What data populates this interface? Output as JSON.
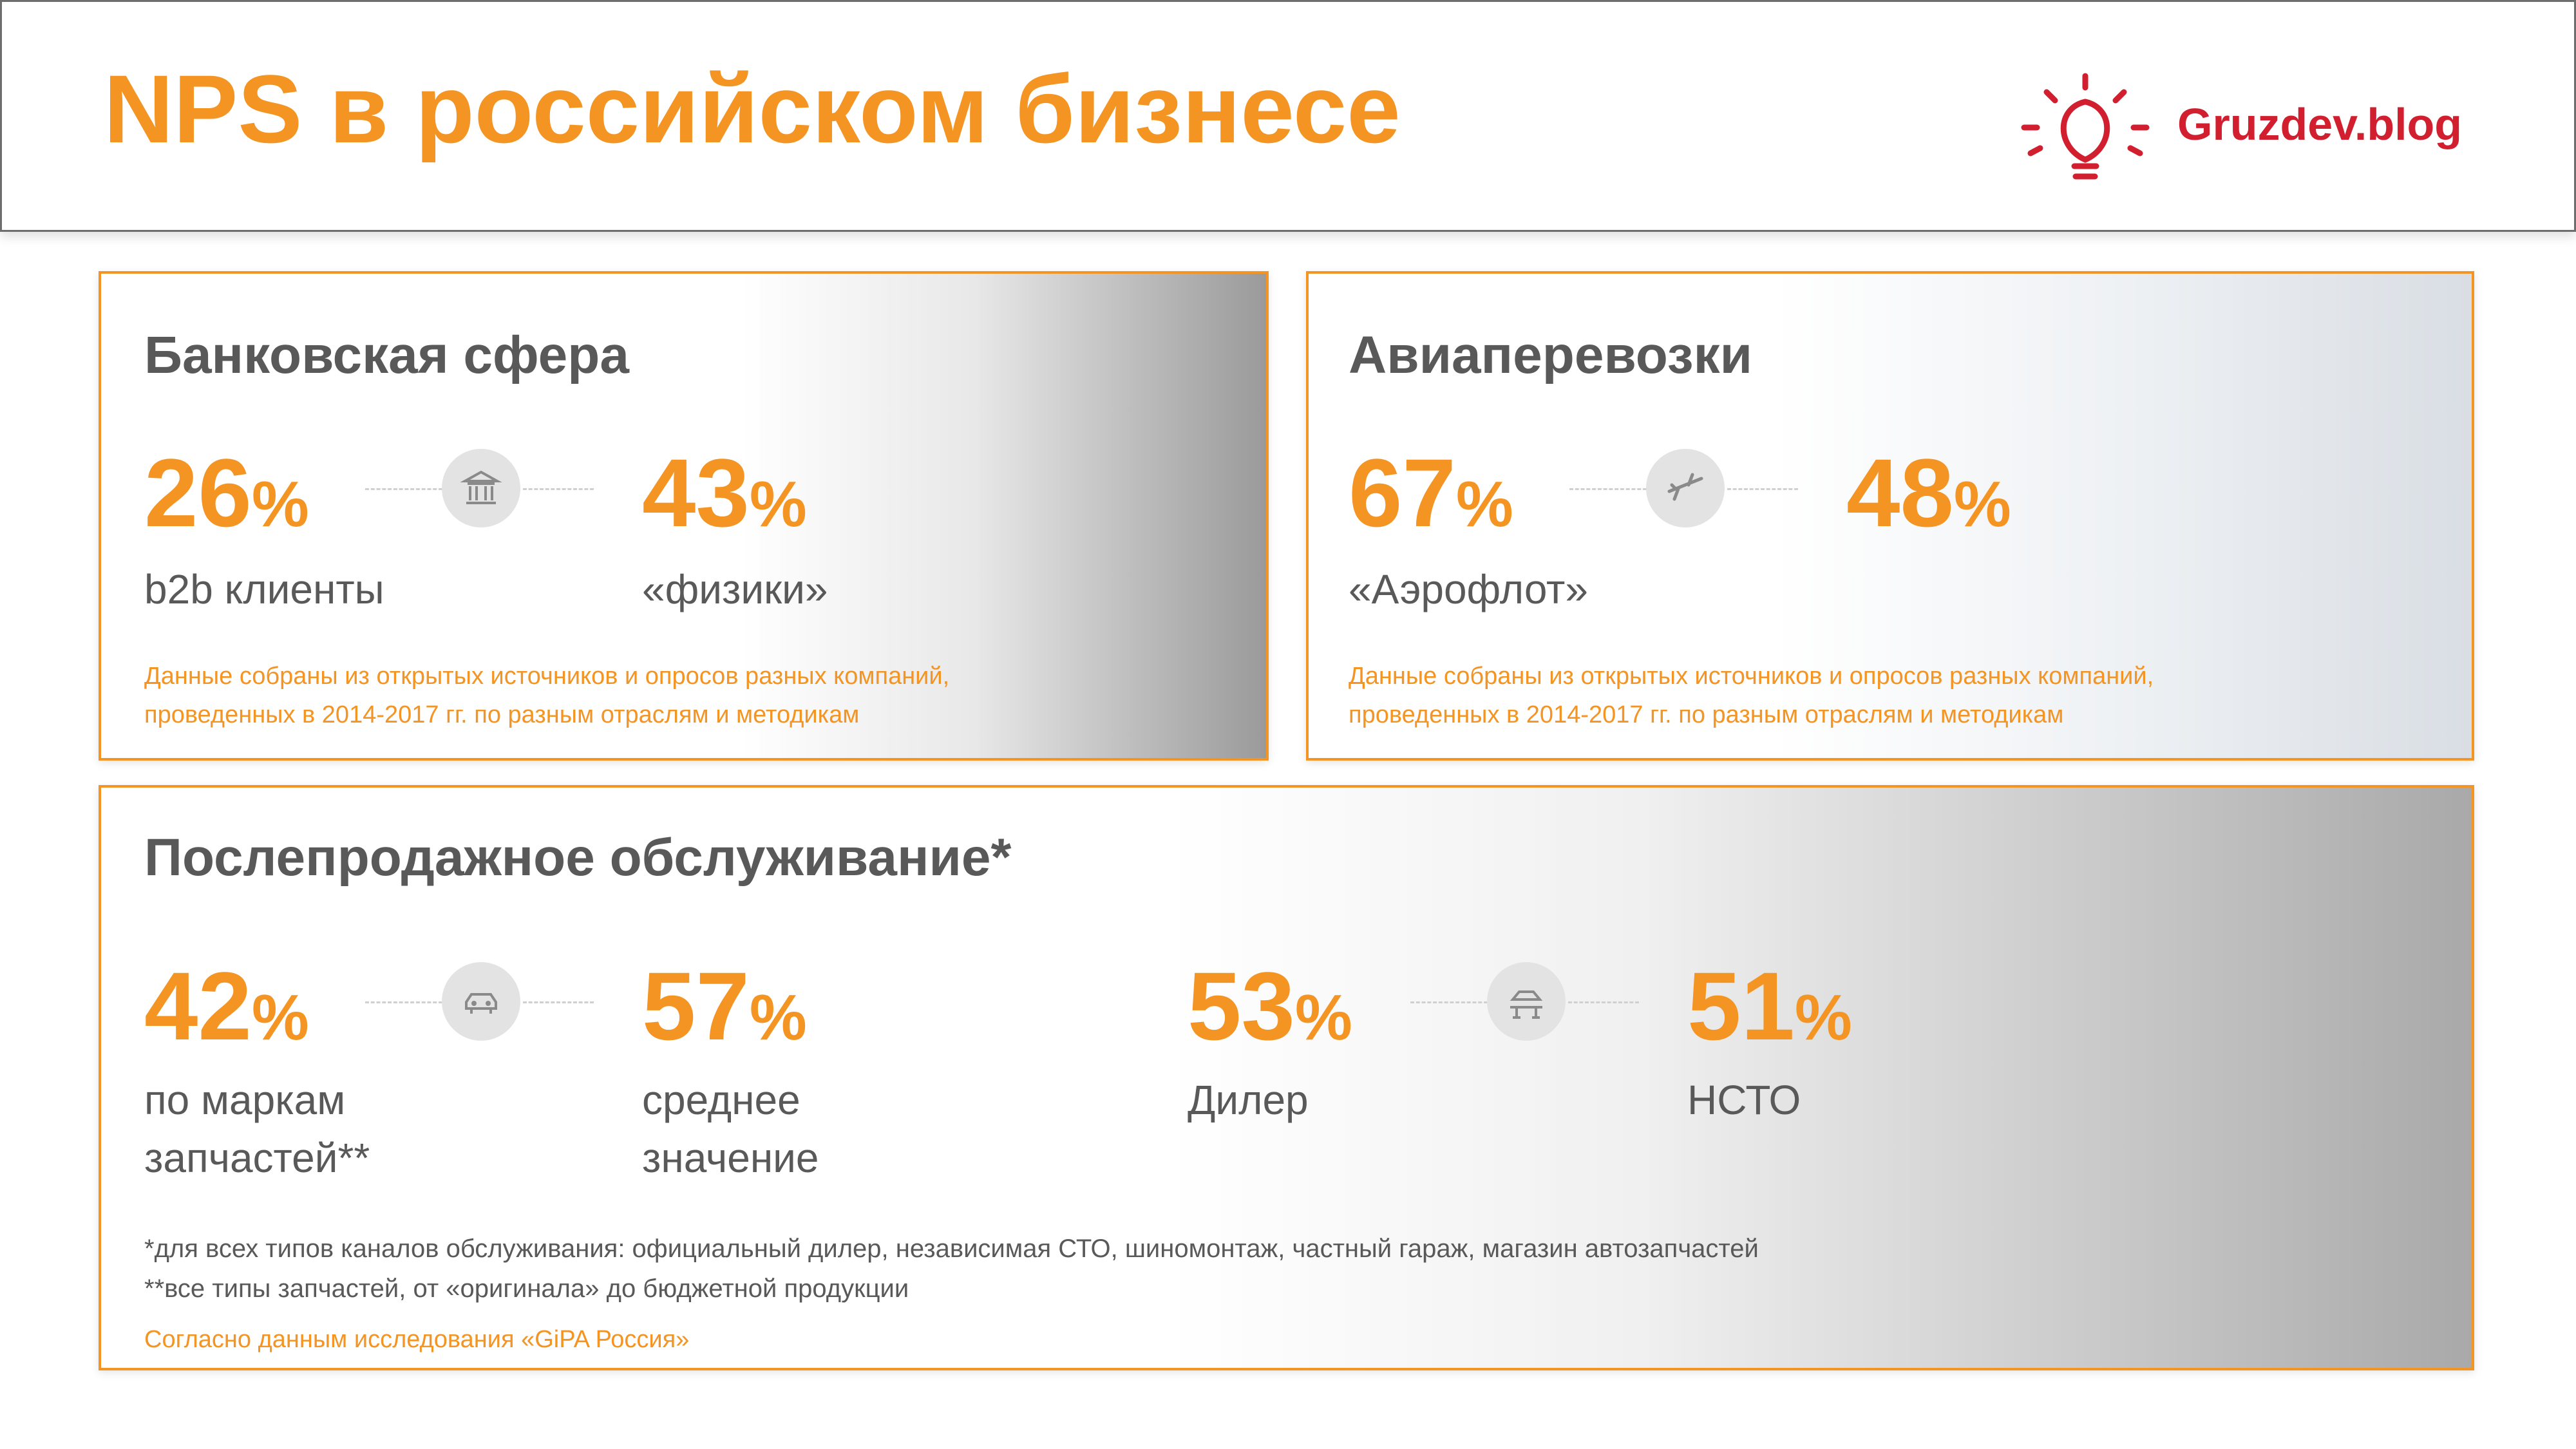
{
  "header": {
    "title": "NPS в российском бизнесе",
    "logo": "Gruzdev.blog"
  },
  "sections": [
    {
      "title": "Банковская сфера",
      "stats": [
        {
          "value": 26,
          "unit": "%",
          "label": "b2b клиенты"
        },
        {
          "value": 43,
          "unit": "%",
          "label": "«физики»"
        }
      ],
      "note": [
        "Данные собраны из открытых источников и опросов разных компаний,",
        "проведенных в 2014-2017 гг. по разным отраслям и методикам"
      ]
    },
    {
      "title": "Авиаперевозки",
      "stats": [
        {
          "value": 67,
          "unit": "%",
          "label": "«Аэрофлот»"
        },
        {
          "value": 48,
          "unit": "%"
        }
      ],
      "note": [
        "Данные собраны из открытых источников и опросов разных компаний,",
        "проведенных в 2014-2017 гг. по разным отраслям и методикам"
      ]
    },
    {
      "title": "Послепродажное обслуживание*",
      "stats": [
        {
          "value": 42,
          "unit": "%",
          "label": "по маркам запчастей**"
        },
        {
          "value": 57,
          "unit": "%",
          "label": "среднее значение"
        },
        {
          "value": 53,
          "unit": "%",
          "label": "Дилер"
        },
        {
          "value": 51,
          "unit": "%",
          "label": "НСТО"
        }
      ],
      "footnotes": [
        "*для всех типов каналов обслуживания: официальный дилер, независимая СТО, шиномонтаж, частный гараж, магазин автозапчастей",
        "**все типы запчастей, от «оригинала» до бюджетной продукции"
      ],
      "source": "Согласно данным исследования «GiPA Россия»"
    }
  ]
}
